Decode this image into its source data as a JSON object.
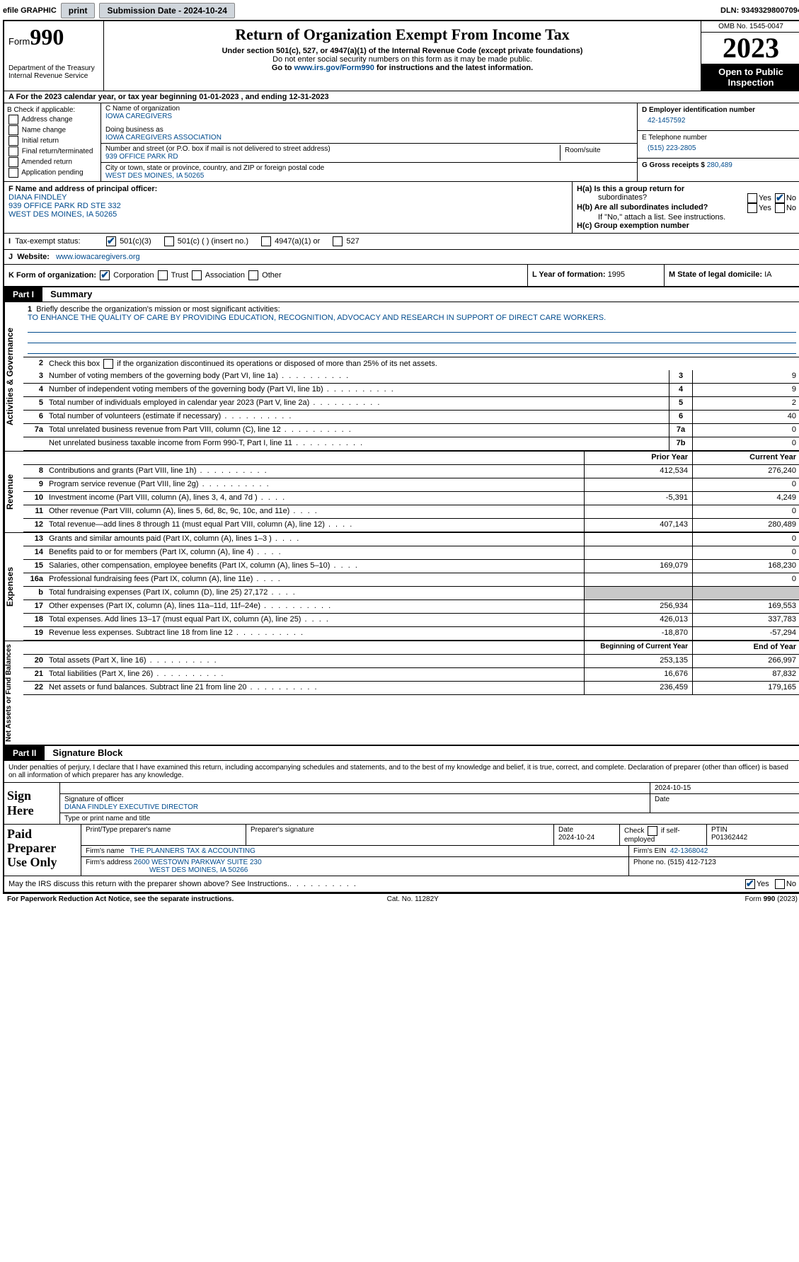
{
  "topbar": {
    "efile_label": "efile GRAPHIC",
    "print_btn": "print",
    "sub_date_label": "Submission Date - 2024-10-24",
    "dln_label": "DLN: 93493298007094"
  },
  "header": {
    "form_label": "Form",
    "form_number": "990",
    "dept": "Department of the Treasury",
    "irs": "Internal Revenue Service",
    "title": "Return of Organization Exempt From Income Tax",
    "sub1": "Under section 501(c), 527, or 4947(a)(1) of the Internal Revenue Code (except private foundations)",
    "sub2": "Do not enter social security numbers on this form as it may be made public.",
    "sub3_prefix": "Go to ",
    "sub3_link": "www.irs.gov/Form990",
    "sub3_suffix": " for instructions and the latest information.",
    "omb": "OMB No. 1545-0047",
    "year": "2023",
    "inspect": "Open to Public Inspection"
  },
  "rowA": "A For the 2023 calendar year, or tax year beginning 01-01-2023   , and ending 12-31-2023",
  "boxB": {
    "label": "B Check if applicable:",
    "opts": [
      "Address change",
      "Name change",
      "Initial return",
      "Final return/terminated",
      "Amended return",
      "Application pending"
    ]
  },
  "boxC": {
    "name_label": "C Name of organization",
    "name": "IOWA CAREGIVERS",
    "dba_label": "Doing business as",
    "dba": "IOWA CAREGIVERS ASSOCIATION",
    "street_label": "Number and street (or P.O. box if mail is not delivered to street address)",
    "room_label": "Room/suite",
    "street": "939 OFFICE PARK RD",
    "city_label": "City or town, state or province, country, and ZIP or foreign postal code",
    "city": "WEST DES MOINES, IA  50265"
  },
  "boxD": {
    "ein_label": "D Employer identification number",
    "ein": "42-1457592",
    "phone_label": "E Telephone number",
    "phone": "(515) 223-2805",
    "gross_label": "G Gross receipts $",
    "gross": "280,489"
  },
  "boxF": {
    "label": "F  Name and address of principal officer:",
    "name": "DIANA FINDLEY",
    "addr1": "939 OFFICE PARK RD STE 332",
    "addr2": "WEST DES MOINES, IA  50265"
  },
  "boxH": {
    "a_label": "H(a)  Is this a group return for",
    "a_label2": "subordinates?",
    "b_label": "H(b)  Are all subordinates included?",
    "b_note": "If \"No,\" attach a list. See instructions.",
    "c_label": "H(c)  Group exemption number",
    "yes": "Yes",
    "no": "No"
  },
  "rowI": {
    "label": "Tax-exempt status:",
    "opt1": "501(c)(3)",
    "opt2": "501(c) (  ) (insert no.)",
    "opt3": "4947(a)(1) or",
    "opt4": "527"
  },
  "rowJ": {
    "label": "Website:",
    "value": "www.iowacaregivers.org"
  },
  "rowK": {
    "label": "K Form of organization:",
    "opts": [
      "Corporation",
      "Trust",
      "Association",
      "Other"
    ]
  },
  "rowL": {
    "label": "L Year of formation:",
    "value": "1995"
  },
  "rowM": {
    "label": "M State of legal domicile:",
    "value": "IA"
  },
  "part1": {
    "header": "Part I",
    "title": "Summary",
    "tab_gov": "Activities & Governance",
    "tab_rev": "Revenue",
    "tab_exp": "Expenses",
    "tab_net": "Net Assets or Fund Balances",
    "line1_label": "Briefly describe the organization's mission or most significant activities:",
    "line1_text": "TO ENHANCE THE QUALITY OF CARE BY PROVIDING EDUCATION, RECOGNITION, ADVOCACY AND RESEARCH IN SUPPORT OF DIRECT CARE WORKERS.",
    "line2": "Check this box      if the organization discontinued its operations or disposed of more than 25% of its net assets.",
    "lines_gov": [
      {
        "n": "3",
        "d": "Number of voting members of the governing body (Part VI, line 1a)",
        "b": "3",
        "v": "9"
      },
      {
        "n": "4",
        "d": "Number of independent voting members of the governing body (Part VI, line 1b)",
        "b": "4",
        "v": "9"
      },
      {
        "n": "5",
        "d": "Total number of individuals employed in calendar year 2023 (Part V, line 2a)",
        "b": "5",
        "v": "2"
      },
      {
        "n": "6",
        "d": "Total number of volunteers (estimate if necessary)",
        "b": "6",
        "v": "40"
      },
      {
        "n": "7a",
        "d": "Total unrelated business revenue from Part VIII, column (C), line 12",
        "b": "7a",
        "v": "0"
      },
      {
        "n": "",
        "d": "Net unrelated business taxable income from Form 990-T, Part I, line 11",
        "b": "7b",
        "v": "0"
      }
    ],
    "col_prior": "Prior Year",
    "col_current": "Current Year",
    "lines_rev": [
      {
        "n": "8",
        "d": "Contributions and grants (Part VIII, line 1h)",
        "p": "412,534",
        "c": "276,240"
      },
      {
        "n": "9",
        "d": "Program service revenue (Part VIII, line 2g)",
        "p": "",
        "c": "0"
      },
      {
        "n": "10",
        "d": "Investment income (Part VIII, column (A), lines 3, 4, and 7d )",
        "p": "-5,391",
        "c": "4,249"
      },
      {
        "n": "11",
        "d": "Other revenue (Part VIII, column (A), lines 5, 6d, 8c, 9c, 10c, and 11e)",
        "p": "",
        "c": "0"
      },
      {
        "n": "12",
        "d": "Total revenue—add lines 8 through 11 (must equal Part VIII, column (A), line 12)",
        "p": "407,143",
        "c": "280,489"
      }
    ],
    "lines_exp": [
      {
        "n": "13",
        "d": "Grants and similar amounts paid (Part IX, column (A), lines 1–3 )",
        "p": "",
        "c": "0"
      },
      {
        "n": "14",
        "d": "Benefits paid to or for members (Part IX, column (A), line 4)",
        "p": "",
        "c": "0"
      },
      {
        "n": "15",
        "d": "Salaries, other compensation, employee benefits (Part IX, column (A), lines 5–10)",
        "p": "169,079",
        "c": "168,230"
      },
      {
        "n": "16a",
        "d": "Professional fundraising fees (Part IX, column (A), line 11e)",
        "p": "",
        "c": "0"
      },
      {
        "n": "b",
        "d": "Total fundraising expenses (Part IX, column (D), line 25) 27,172",
        "p": "SHADED",
        "c": "SHADED"
      },
      {
        "n": "17",
        "d": "Other expenses (Part IX, column (A), lines 11a–11d, 11f–24e)",
        "p": "256,934",
        "c": "169,553"
      },
      {
        "n": "18",
        "d": "Total expenses. Add lines 13–17 (must equal Part IX, column (A), line 25)",
        "p": "426,013",
        "c": "337,783"
      },
      {
        "n": "19",
        "d": "Revenue less expenses. Subtract line 18 from line 12",
        "p": "-18,870",
        "c": "-57,294"
      }
    ],
    "col_begin": "Beginning of Current Year",
    "col_end": "End of Year",
    "lines_net": [
      {
        "n": "20",
        "d": "Total assets (Part X, line 16)",
        "p": "253,135",
        "c": "266,997"
      },
      {
        "n": "21",
        "d": "Total liabilities (Part X, line 26)",
        "p": "16,676",
        "c": "87,832"
      },
      {
        "n": "22",
        "d": "Net assets or fund balances. Subtract line 21 from line 20",
        "p": "236,459",
        "c": "179,165"
      }
    ]
  },
  "part2": {
    "header": "Part II",
    "title": "Signature Block",
    "decl": "Under penalties of perjury, I declare that I have examined this return, including accompanying schedules and statements, and to the best of my knowledge and belief, it is true, correct, and complete. Declaration of preparer (other than officer) is based on all information of which preparer has any knowledge.",
    "sign_here": "Sign Here",
    "sig_officer": "Signature of officer",
    "sig_date": "2024-10-15",
    "officer_name": "DIANA FINDLEY  EXECUTIVE DIRECTOR",
    "type_label": "Type or print name and title",
    "date_label": "Date",
    "paid_label": "Paid Preparer Use Only",
    "prep_name_label": "Print/Type preparer's name",
    "prep_sig_label": "Preparer's signature",
    "prep_date": "2024-10-24",
    "check_if": "Check      if self-employed",
    "ptin_label": "PTIN",
    "ptin": "P01362442",
    "firm_name_label": "Firm's name",
    "firm_name": "THE PLANNERS TAX & ACCOUNTING",
    "firm_ein_label": "Firm's EIN",
    "firm_ein": "42-1368042",
    "firm_addr_label": "Firm's address",
    "firm_addr1": "2600 WESTOWN PARKWAY SUITE 230",
    "firm_addr2": "WEST DES MOINES, IA  50266",
    "firm_phone_label": "Phone no.",
    "firm_phone": "(515) 412-7123",
    "discuss": "May the IRS discuss this return with the preparer shown above? See Instructions."
  },
  "footer": {
    "left": "For Paperwork Reduction Act Notice, see the separate instructions.",
    "mid": "Cat. No. 11282Y",
    "right": "Form 990 (2023)"
  }
}
